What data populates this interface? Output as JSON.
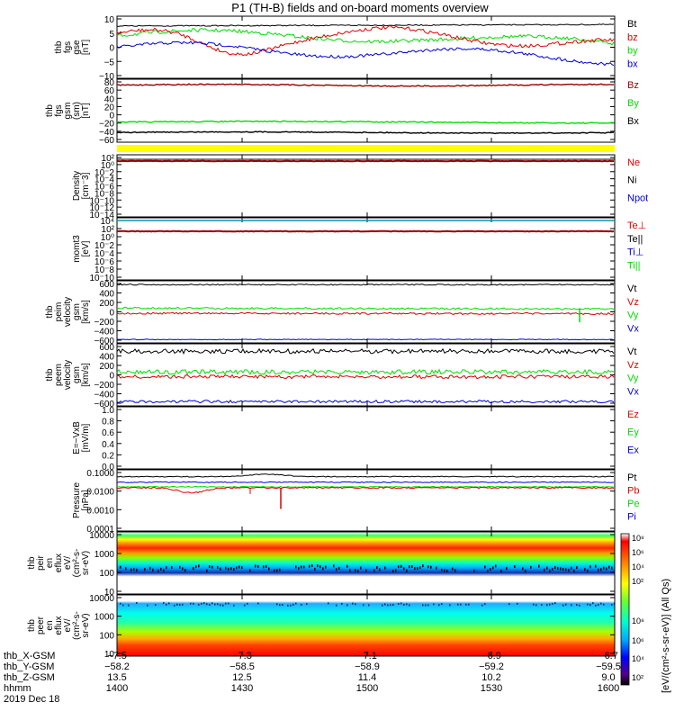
{
  "title": "P1 (TH-B) fields and on-board moments overview",
  "colors": {
    "black": "#000000",
    "red": "#e00000",
    "green": "#00dd00",
    "blue": "#0000dd",
    "darkred": "#990000",
    "yellow": "#ffff00"
  },
  "panels": [
    {
      "id": "fgs",
      "ylabel": [
        "thb",
        "fgs",
        "gse",
        "[nT]"
      ],
      "yticks": [
        "10",
        "5",
        "0",
        "−5",
        "−10"
      ],
      "legend": [
        {
          "text": "Bt",
          "color": "black"
        },
        {
          "text": "bz",
          "color": "red"
        },
        {
          "text": "by",
          "color": "green"
        },
        {
          "text": "bx",
          "color": "blue"
        }
      ]
    },
    {
      "id": "fgs_gsm",
      "ylabel": [
        "thb",
        "fgs",
        "gsm",
        "(sm)",
        "[nT]"
      ],
      "yticks": [
        "80",
        "60",
        "40",
        "20",
        "0",
        "−20",
        "−40",
        "−60"
      ],
      "legend": [
        {
          "text": "Bz",
          "color": "darkred"
        },
        {
          "text": "By",
          "color": "green"
        },
        {
          "text": "Bx",
          "color": "black"
        }
      ]
    },
    {
      "id": "density",
      "ylabel": [
        "Density",
        "[cm⁻3]"
      ],
      "yticks": [
        "10²",
        "10⁰",
        "10⁻2",
        "10⁻4",
        "10⁻6",
        "10⁻8",
        "10⁻10",
        "10⁻12",
        "10⁻14"
      ],
      "legend": [
        {
          "text": "Ne",
          "color": "red"
        },
        {
          "text": "Ni",
          "color": "black"
        },
        {
          "text": "Npot",
          "color": "blue"
        }
      ]
    },
    {
      "id": "temp",
      "ylabel": [
        "momt3",
        "[eV]"
      ],
      "yticks": [
        "10⁴",
        "10²",
        "10⁰",
        "10⁻2",
        "10⁻4",
        "10⁻6",
        "10⁻8",
        "10⁻10"
      ],
      "legend": [
        {
          "text": "Te⊥",
          "color": "red"
        },
        {
          "text": "Te||",
          "color": "black"
        },
        {
          "text": "Ti⊥",
          "color": "blue"
        },
        {
          "text": "Ti||",
          "color": "green"
        }
      ]
    },
    {
      "id": "peim",
      "ylabel": [
        "thb",
        "peim",
        "velocity",
        "gsm",
        "[km/s]"
      ],
      "yticks": [
        "600",
        "400",
        "200",
        "0",
        "−200",
        "−400",
        "−600"
      ],
      "legend": [
        {
          "text": "Vt",
          "color": "black"
        },
        {
          "text": "Vz",
          "color": "red"
        },
        {
          "text": "Vy",
          "color": "green"
        },
        {
          "text": "Vx",
          "color": "blue"
        }
      ]
    },
    {
      "id": "peem",
      "ylabel": [
        "thb",
        "peem",
        "velocity",
        "gsm",
        "[km/s]"
      ],
      "yticks": [
        "600",
        "400",
        "200",
        "0",
        "−200",
        "−400",
        "−600"
      ],
      "legend": [
        {
          "text": "Vt",
          "color": "black"
        },
        {
          "text": "Vz",
          "color": "red"
        },
        {
          "text": "Vy",
          "color": "green"
        },
        {
          "text": "Vx",
          "color": "blue"
        }
      ]
    },
    {
      "id": "efield",
      "ylabel": [
        "E=−VxB",
        "[mV/m]"
      ],
      "yticks": [
        "1.0",
        "0.8",
        "0.6",
        "0.4",
        "0.2",
        "0.0"
      ],
      "legend": [
        {
          "text": "Ez",
          "color": "red"
        },
        {
          "text": "Ey",
          "color": "green"
        },
        {
          "text": "Ex",
          "color": "blue"
        }
      ]
    },
    {
      "id": "pressure",
      "ylabel": [
        "Pressure",
        "[nPa]"
      ],
      "yticks": [
        "0.1000",
        "0.0100",
        "0.0010",
        "0.0001"
      ],
      "legend": [
        {
          "text": "Pt",
          "color": "black"
        },
        {
          "text": "Pb",
          "color": "red"
        },
        {
          "text": "Pe",
          "color": "green"
        },
        {
          "text": "Pi",
          "color": "blue"
        }
      ]
    },
    {
      "id": "peir",
      "ylabel": [
        "thb",
        "peir",
        "en",
        "eflux",
        "eV/",
        "(cm²-s-",
        "sr-eV)"
      ],
      "yticks": [
        "10000",
        "1000",
        "100",
        "10"
      ],
      "legend": []
    },
    {
      "id": "peer",
      "ylabel": [
        "thb",
        "peer",
        "en",
        "eflux",
        "eV/",
        "(cm²-s-",
        "sr-eV)"
      ],
      "yticks": [
        "10000",
        "1000",
        "100",
        "10"
      ],
      "legend": []
    }
  ],
  "colorbar": {
    "ticks": [
      "10⁸",
      "10⁶",
      "10⁴",
      "10²"
    ],
    "label": "[eV/(cm²-s-sr-eV)] (All Qs)",
    "gradient": [
      "#ffffff",
      "#ff0000",
      "#ff8800",
      "#ffff00",
      "#66ff33",
      "#00ffcc",
      "#00aaff",
      "#0000ff",
      "#550088",
      "#000000"
    ]
  },
  "xaxis": {
    "row_labels": [
      "thb_X-GSM",
      "thb_Y-GSM",
      "thb_Z-GSM",
      "hhmm",
      "2019 Dec 18"
    ],
    "columns": [
      [
        "−7.5",
        "−58.2",
        "13.5",
        "1400"
      ],
      [
        "−7.3",
        "−58.5",
        "12.5",
        "1430"
      ],
      [
        "−7.1",
        "−58.9",
        "11.4",
        "1500"
      ],
      [
        "−6.9",
        "−59.2",
        "10.2",
        "1530"
      ],
      [
        "−6.7",
        "−59.5",
        "9.0",
        "1600"
      ]
    ]
  },
  "chart_data": {
    "type": "line",
    "title": "P1 (TH-B) fields and on-board moments overview",
    "x": {
      "label": "hhmm",
      "ticks": [
        "1400",
        "1430",
        "1500",
        "1530",
        "1600"
      ],
      "date": "2019 Dec 18"
    },
    "series": [
      {
        "panel": "fgs",
        "name": "Bt",
        "approx": [
          [
            1400,
            7
          ],
          [
            1430,
            7.5
          ],
          [
            1500,
            8
          ],
          [
            1530,
            8
          ],
          [
            1600,
            8
          ]
        ]
      },
      {
        "panel": "fgs",
        "name": "bz",
        "approx": [
          [
            1400,
            6
          ],
          [
            1420,
            0
          ],
          [
            1430,
            6
          ],
          [
            1500,
            5
          ],
          [
            1530,
            -2
          ],
          [
            1600,
            -6
          ]
        ]
      },
      {
        "panel": "fgs",
        "name": "by",
        "approx": [
          [
            1400,
            4
          ],
          [
            1430,
            5
          ],
          [
            1500,
            3
          ],
          [
            1530,
            1
          ],
          [
            1600,
            -2
          ]
        ]
      },
      {
        "panel": "fgs",
        "name": "bx",
        "approx": [
          [
            1400,
            1
          ],
          [
            1430,
            -4
          ],
          [
            1500,
            -3
          ],
          [
            1530,
            -5
          ],
          [
            1600,
            -6
          ]
        ]
      },
      {
        "panel": "fgs_gsm",
        "name": "Bz",
        "approx": [
          [
            1400,
            75
          ],
          [
            1600,
            75
          ]
        ]
      },
      {
        "panel": "fgs_gsm",
        "name": "By",
        "approx": [
          [
            1400,
            -18
          ],
          [
            1600,
            -18
          ]
        ]
      },
      {
        "panel": "fgs_gsm",
        "name": "Bx",
        "approx": [
          [
            1400,
            -43
          ],
          [
            1600,
            -43
          ]
        ]
      },
      {
        "panel": "peim",
        "name": "Vt",
        "approx": [
          [
            1400,
            580
          ],
          [
            1600,
            580
          ]
        ]
      },
      {
        "panel": "peim",
        "name": "Vy",
        "approx": [
          [
            1400,
            80
          ],
          [
            1600,
            60
          ]
        ]
      },
      {
        "panel": "peim",
        "name": "Vz",
        "approx": [
          [
            1400,
            -20
          ],
          [
            1600,
            -30
          ]
        ]
      },
      {
        "panel": "peim",
        "name": "Vx",
        "approx": [
          [
            1400,
            -580
          ],
          [
            1600,
            -580
          ]
        ]
      },
      {
        "panel": "peem",
        "name": "Vt",
        "approx": [
          [
            1400,
            520
          ],
          [
            1600,
            520
          ]
        ]
      },
      {
        "panel": "peem",
        "name": "Vy",
        "approx": [
          [
            1400,
            60
          ],
          [
            1600,
            60
          ]
        ]
      },
      {
        "panel": "peem",
        "name": "Vz",
        "approx": [
          [
            1400,
            -40
          ],
          [
            1600,
            -40
          ]
        ]
      },
      {
        "panel": "peem",
        "name": "Vx",
        "approx": [
          [
            1400,
            -560
          ],
          [
            1600,
            -560
          ]
        ]
      },
      {
        "panel": "pressure",
        "name": "Pt",
        "approx": [
          [
            1400,
            0.06
          ],
          [
            1600,
            0.06
          ]
        ]
      },
      {
        "panel": "pressure",
        "name": "Pi",
        "approx": [
          [
            1400,
            0.03
          ],
          [
            1600,
            0.03
          ]
        ]
      },
      {
        "panel": "pressure",
        "name": "Pb",
        "approx": [
          [
            1400,
            0.015
          ],
          [
            1600,
            0.015
          ]
        ]
      },
      {
        "panel": "pressure",
        "name": "Pe",
        "approx": [
          [
            1400,
            0.012
          ],
          [
            1600,
            0.015
          ]
        ]
      }
    ]
  }
}
